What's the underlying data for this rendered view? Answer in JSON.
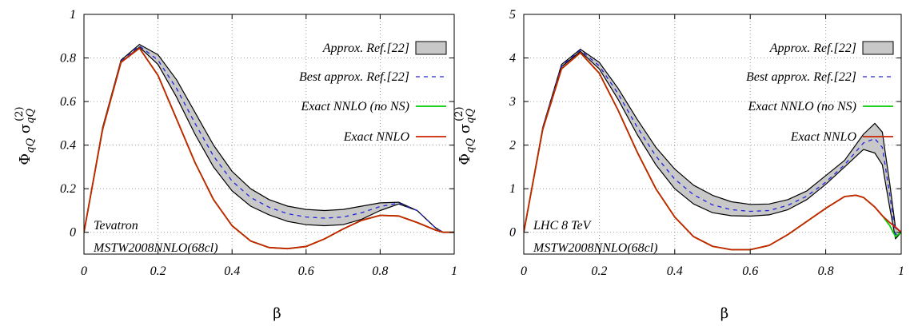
{
  "chart_data": [
    {
      "type": "line",
      "xlabel": "β",
      "ylabel": {
        "main": "Φ",
        "sub1": "qQ",
        "sigma": "σ",
        "sub2": "qQ",
        "sup": "(2)"
      },
      "xlim": [
        0,
        1
      ],
      "ylim": [
        -0.1,
        1.0
      ],
      "xticks": [
        "0",
        "0.2",
        "0.4",
        "0.6",
        "0.8",
        "1"
      ],
      "xtick_values": [
        0,
        0.2,
        0.4,
        0.6,
        0.8,
        1.0
      ],
      "yticks": [
        "0",
        "0.2",
        "0.4",
        "0.6",
        "0.8",
        "1"
      ],
      "ytick_values": [
        0,
        0.2,
        0.4,
        0.6,
        0.8,
        1.0
      ],
      "grid": true,
      "legend_position": "top-right",
      "annotations": [
        "Tevatron",
        "MSTW2008NNLO(68cl)"
      ],
      "series": [
        {
          "name": "Approx. Ref.[22]",
          "kind": "band",
          "color": "#c8c8c8",
          "x": [
            0,
            0.05,
            0.1,
            0.15,
            0.2,
            0.25,
            0.3,
            0.35,
            0.4,
            0.45,
            0.5,
            0.55,
            0.6,
            0.65,
            0.7,
            0.75,
            0.8,
            0.85,
            0.9,
            0.95,
            0.97,
            1.0
          ],
          "upper": [
            0,
            0.48,
            0.79,
            0.862,
            0.815,
            0.7,
            0.55,
            0.4,
            0.28,
            0.2,
            0.15,
            0.12,
            0.105,
            0.1,
            0.105,
            0.12,
            0.135,
            0.138,
            0.1,
            0.02,
            0,
            0
          ],
          "lower": [
            0,
            0.47,
            0.78,
            0.85,
            0.77,
            0.62,
            0.45,
            0.3,
            0.19,
            0.12,
            0.08,
            0.05,
            0.035,
            0.03,
            0.035,
            0.06,
            0.1,
            0.13,
            0.1,
            0.02,
            0,
            0
          ]
        },
        {
          "name": "Best approx. Ref.[22]",
          "kind": "line",
          "color": "#2222dd",
          "dash": "5,5",
          "x": [
            0,
            0.05,
            0.1,
            0.15,
            0.2,
            0.25,
            0.3,
            0.35,
            0.4,
            0.45,
            0.5,
            0.55,
            0.6,
            0.65,
            0.7,
            0.75,
            0.8,
            0.85,
            0.9,
            0.95,
            0.97,
            1.0
          ],
          "y": [
            0,
            0.475,
            0.785,
            0.855,
            0.79,
            0.66,
            0.5,
            0.35,
            0.235,
            0.16,
            0.115,
            0.085,
            0.07,
            0.065,
            0.07,
            0.09,
            0.118,
            0.134,
            0.1,
            0.02,
            0,
            0
          ]
        },
        {
          "name": "Exact NNLO (no NS)",
          "kind": "line",
          "color": "#00cc00",
          "x": [
            0,
            0.05,
            0.1,
            0.15,
            0.2,
            0.25,
            0.3,
            0.35,
            0.4,
            0.45,
            0.5,
            0.55,
            0.6,
            0.65,
            0.7,
            0.75,
            0.8,
            0.85,
            0.9,
            0.95,
            0.97,
            1.0
          ],
          "y": [
            0,
            0.47,
            0.78,
            0.845,
            0.72,
            0.52,
            0.32,
            0.15,
            0.03,
            -0.04,
            -0.07,
            -0.075,
            -0.065,
            -0.03,
            0.015,
            0.055,
            0.078,
            0.075,
            0.045,
            0.01,
            0,
            0
          ]
        },
        {
          "name": "Exact NNLO",
          "kind": "line",
          "color": "#cc2200",
          "x": [
            0,
            0.05,
            0.1,
            0.15,
            0.2,
            0.25,
            0.3,
            0.35,
            0.4,
            0.45,
            0.5,
            0.55,
            0.6,
            0.65,
            0.7,
            0.75,
            0.8,
            0.85,
            0.9,
            0.95,
            0.97,
            1.0
          ],
          "y": [
            0,
            0.47,
            0.78,
            0.845,
            0.72,
            0.52,
            0.32,
            0.15,
            0.03,
            -0.04,
            -0.07,
            -0.075,
            -0.065,
            -0.03,
            0.015,
            0.055,
            0.078,
            0.075,
            0.045,
            0.01,
            0,
            0
          ]
        }
      ]
    },
    {
      "type": "line",
      "xlabel": "β",
      "ylabel": {
        "main": "Φ",
        "sub1": "qQ",
        "sigma": "σ",
        "sub2": "qQ",
        "sup": "(2)"
      },
      "xlim": [
        0,
        1
      ],
      "ylim": [
        -0.5,
        5.0
      ],
      "xticks": [
        "0",
        "0.2",
        "0.4",
        "0.6",
        "0.8",
        "1"
      ],
      "xtick_values": [
        0,
        0.2,
        0.4,
        0.6,
        0.8,
        1.0
      ],
      "yticks": [
        "0",
        "1",
        "2",
        "3",
        "4",
        "5"
      ],
      "ytick_values": [
        0,
        1,
        2,
        3,
        4,
        5
      ],
      "grid": true,
      "legend_position": "top-right",
      "annotations": [
        "LHC 8 TeV",
        "MSTW2008NNLO(68cl)"
      ],
      "series": [
        {
          "name": "Approx. Ref.[22]",
          "kind": "band",
          "color": "#c8c8c8",
          "x": [
            0,
            0.05,
            0.1,
            0.15,
            0.2,
            0.25,
            0.3,
            0.35,
            0.4,
            0.45,
            0.5,
            0.55,
            0.6,
            0.65,
            0.7,
            0.75,
            0.8,
            0.85,
            0.9,
            0.93,
            0.95,
            0.97,
            0.985,
            1.0
          ],
          "upper": [
            0,
            2.4,
            3.85,
            4.2,
            3.9,
            3.3,
            2.6,
            1.95,
            1.45,
            1.08,
            0.85,
            0.7,
            0.64,
            0.65,
            0.75,
            0.95,
            1.3,
            1.65,
            2.25,
            2.5,
            2.3,
            1.1,
            0.1,
            0
          ],
          "lower": [
            0,
            2.35,
            3.8,
            4.15,
            3.75,
            3.05,
            2.25,
            1.55,
            1.0,
            0.65,
            0.45,
            0.38,
            0.37,
            0.4,
            0.52,
            0.75,
            1.1,
            1.5,
            1.9,
            1.82,
            1.55,
            0.55,
            -0.15,
            0
          ]
        },
        {
          "name": "Best approx. Ref.[22]",
          "kind": "line",
          "color": "#2222dd",
          "dash": "5,5",
          "x": [
            0,
            0.05,
            0.1,
            0.15,
            0.2,
            0.25,
            0.3,
            0.35,
            0.4,
            0.45,
            0.5,
            0.55,
            0.6,
            0.65,
            0.7,
            0.75,
            0.8,
            0.85,
            0.9,
            0.93,
            0.95,
            0.97,
            0.985,
            1.0
          ],
          "y": [
            0,
            2.38,
            3.82,
            4.18,
            3.82,
            3.18,
            2.42,
            1.75,
            1.22,
            0.86,
            0.63,
            0.52,
            0.48,
            0.5,
            0.62,
            0.83,
            1.15,
            1.55,
            2.05,
            2.15,
            1.95,
            0.85,
            -0.05,
            0
          ]
        },
        {
          "name": "Exact NNLO (no NS)",
          "kind": "line",
          "color": "#00cc00",
          "x": [
            0,
            0.05,
            0.1,
            0.15,
            0.2,
            0.25,
            0.3,
            0.35,
            0.4,
            0.45,
            0.5,
            0.55,
            0.6,
            0.65,
            0.7,
            0.75,
            0.8,
            0.85,
            0.88,
            0.9,
            0.93,
            0.95,
            0.97,
            0.985,
            1.0
          ],
          "y": [
            0,
            2.35,
            3.75,
            4.12,
            3.65,
            2.8,
            1.85,
            1.0,
            0.35,
            -0.1,
            -0.32,
            -0.4,
            -0.4,
            -0.3,
            -0.05,
            0.25,
            0.55,
            0.82,
            0.85,
            0.8,
            0.58,
            0.38,
            0.15,
            -0.1,
            0
          ]
        },
        {
          "name": "Exact NNLO",
          "kind": "line",
          "color": "#cc2200",
          "x": [
            0,
            0.05,
            0.1,
            0.15,
            0.2,
            0.25,
            0.3,
            0.35,
            0.4,
            0.45,
            0.5,
            0.55,
            0.6,
            0.65,
            0.7,
            0.75,
            0.8,
            0.85,
            0.88,
            0.9,
            0.93,
            0.95,
            0.97,
            0.985,
            1.0
          ],
          "y": [
            0,
            2.35,
            3.75,
            4.12,
            3.65,
            2.8,
            1.85,
            1.0,
            0.35,
            -0.1,
            -0.32,
            -0.4,
            -0.4,
            -0.3,
            -0.05,
            0.25,
            0.55,
            0.82,
            0.85,
            0.8,
            0.58,
            0.38,
            0.22,
            0.12,
            0
          ]
        }
      ]
    }
  ]
}
